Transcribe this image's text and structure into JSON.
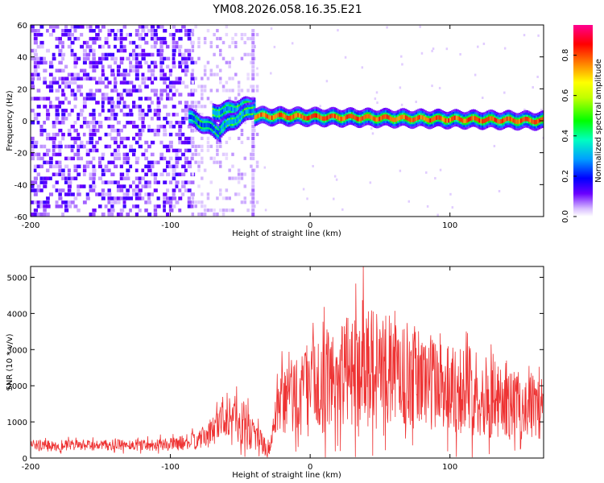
{
  "chart_data": [
    {
      "type": "heatmap",
      "title": "YM08.2026.058.16.35.E21",
      "xlabel": "Height of straight line (km)",
      "ylabel": "Frequency (Hz)",
      "xlim": [
        -200,
        167
      ],
      "ylim": [
        -60,
        60
      ],
      "xticks": [
        -200,
        -100,
        0,
        100
      ],
      "yticks": [
        60,
        40,
        20,
        0,
        -20,
        -40,
        -60
      ],
      "xtick_labels": [
        "-200",
        "-100",
        "0",
        "100"
      ],
      "ytick_labels": [
        "60",
        "40",
        "20",
        "0",
        "-20",
        "-40",
        "-60"
      ],
      "colorbar": {
        "label": "Normalized spectral amplitude",
        "range": [
          0,
          0.95
        ],
        "ticks": [
          0.0,
          0.2,
          0.4,
          0.6,
          0.8
        ],
        "tick_labels": [
          "0.0",
          "0.2",
          "0.4",
          "0.6",
          "0.8"
        ],
        "colormap": [
          "#ffffff",
          "#6a00ff",
          "#0000ff",
          "#00c0ff",
          "#00ff80",
          "#00ff00",
          "#c0ff00",
          "#ffff00",
          "#ff8000",
          "#ff0000",
          "#ff00a0"
        ]
      },
      "features": {
        "noise_region_x": [
          -200,
          -85
        ],
        "noise_amplitude": 0.05,
        "sparse_region_x": [
          -85,
          -38
        ],
        "vertical_streak_x": -40,
        "tone_segments": [
          {
            "x": [
              -87,
              -65
            ],
            "freq": [
              2,
              -7
            ],
            "amplitude": 0.25
          },
          {
            "x": [
              -70,
              -40
            ],
            "freq": [
              5,
              10
            ],
            "amplitude": 0.3
          },
          {
            "x": [
              -65,
              -40
            ],
            "freq": [
              -5,
              8
            ],
            "amplitude": 0.3
          },
          {
            "x": [
              -40,
              167
            ],
            "freq": [
              3,
              0
            ],
            "amplitude": 0.85
          }
        ]
      }
    },
    {
      "type": "line",
      "xlabel": "Height of straight line (km)",
      "ylabel": "SNR (10 * v/v)",
      "xlim": [
        -200,
        167
      ],
      "ylim": [
        0,
        5300
      ],
      "xticks": [
        -200,
        -100,
        0,
        100
      ],
      "yticks": [
        0,
        1000,
        2000,
        3000,
        4000,
        5000
      ],
      "xtick_labels": [
        "-200",
        "-100",
        "0",
        "100"
      ],
      "ytick_labels": [
        "0",
        "1000",
        "2000",
        "3000",
        "4000",
        "5000"
      ],
      "series": [
        {
          "name": "SNR",
          "color": "#ee3333",
          "envelope": {
            "x": [
              -200,
              -150,
              -100,
              -80,
              -70,
              -60,
              -50,
              -40,
              -30,
              -20,
              0,
              20,
              40,
              60,
              80,
              100,
              120,
              140,
              167
            ],
            "mean": [
              350,
              350,
              380,
              480,
              750,
              1300,
              1000,
              700,
              200,
              1600,
              1900,
              2300,
              2600,
              2400,
              2200,
              2000,
              1800,
              1500,
              1400
            ],
            "spread": [
              150,
              150,
              180,
              250,
              400,
              700,
              700,
              500,
              200,
              1100,
              1300,
              1500,
              1600,
              1500,
              1400,
              1300,
              1200,
              1000,
              900
            ]
          },
          "peak": {
            "x": 38,
            "y": 5300
          }
        }
      ]
    }
  ]
}
